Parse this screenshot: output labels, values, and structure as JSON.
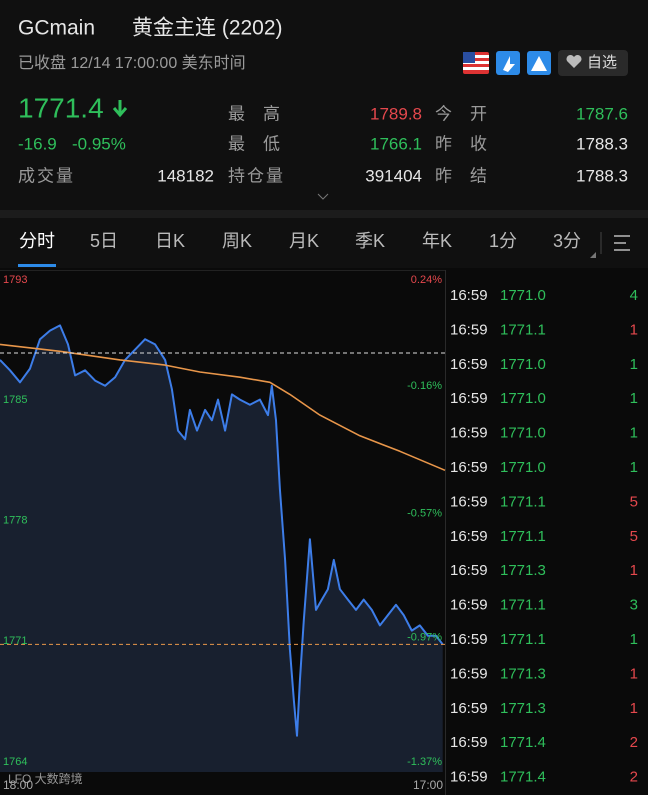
{
  "header": {
    "symbol": "GCmain",
    "name": "黄金主连 (2202)",
    "status": "已收盘 12/14 17:00:00 美东时间",
    "watchlist": "自选"
  },
  "quote": {
    "price": 1771.4,
    "change": -16.9,
    "change_pct": "-0.95%",
    "stats": [
      {
        "label": "最高",
        "value": 1789.8,
        "color": "#e5484d"
      },
      {
        "label": "今开",
        "value": 1787.6,
        "color": "#2fbf5b"
      },
      {
        "label": "最低",
        "value": 1766.1,
        "color": "#2fbf5b"
      },
      {
        "label": "昨收",
        "value": 1788.3,
        "color": "#e6e6e6"
      },
      {
        "label": "成交量",
        "value": 148182,
        "color": "#e6e6e6"
      },
      {
        "label": "持仓量",
        "value": 391404,
        "color": "#e6e6e6"
      },
      {
        "label": "昨结",
        "value": 1788.3,
        "color": "#e6e6e6"
      }
    ]
  },
  "tabs": [
    "分时",
    "5日",
    "日K",
    "周K",
    "月K",
    "季K",
    "年K",
    "1分",
    "3分"
  ],
  "chart_data": {
    "type": "line",
    "xlim": [
      0,
      1380
    ],
    "xticks": [
      {
        "value": 0,
        "label": "18:00"
      },
      {
        "value": 1380,
        "label": "17:00"
      }
    ],
    "ylim": [
      1764,
      1793
    ],
    "yticks": [
      1793,
      1785,
      1778,
      1771,
      1764
    ],
    "y2lim": [
      -1.37,
      0.24
    ],
    "y2ticks": [
      {
        "value": 0.24,
        "label": "0.24%"
      },
      {
        "value": -0.16,
        "label": "-0.16%"
      },
      {
        "value": -0.57,
        "label": "-0.57%"
      },
      {
        "value": -0.97,
        "label": "-0.97%"
      },
      {
        "value": -1.37,
        "label": "-1.37%"
      }
    ],
    "series": [
      {
        "color": "#3d7de8",
        "fill": "#18202f",
        "x": [
          0,
          31,
          62,
          93,
          124,
          155,
          186,
          211,
          233,
          264,
          295,
          326,
          357,
          388,
          419,
          450,
          481,
          512,
          533,
          552,
          574,
          589,
          611,
          636,
          657,
          676,
          698,
          719,
          744,
          775,
          806,
          831,
          843,
          856,
          868,
          884,
          899,
          911,
          921,
          930,
          942,
          961,
          980,
          998,
          1017,
          1035,
          1054,
          1079,
          1104,
          1128,
          1153,
          1178,
          1203,
          1228,
          1252,
          1277,
          1302,
          1327,
          1352,
          1373
        ],
        "values": [
          1787.9,
          1787.3,
          1786.6,
          1787.4,
          1789.1,
          1789.6,
          1789.9,
          1788.8,
          1787.0,
          1787.3,
          1786.7,
          1786.4,
          1786.9,
          1787.9,
          1788.5,
          1789.1,
          1788.8,
          1787.9,
          1786.2,
          1783.8,
          1783.3,
          1785.0,
          1783.8,
          1785.0,
          1784.4,
          1785.6,
          1783.8,
          1785.9,
          1785.6,
          1785.3,
          1785.6,
          1784.7,
          1786.4,
          1784.4,
          1780.4,
          1776.3,
          1771.1,
          1768.2,
          1766.1,
          1769.3,
          1772.8,
          1777.5,
          1773.4,
          1774.0,
          1774.6,
          1776.3,
          1774.6,
          1774.0,
          1773.4,
          1774.0,
          1773.4,
          1772.5,
          1773.1,
          1773.7,
          1773.1,
          1772.2,
          1772.5,
          1771.9,
          1771.9,
          1771.4
        ]
      },
      {
        "color": "#e8964a",
        "x": [
          0,
          186,
          372,
          512,
          620,
          744,
          837,
          899,
          992,
          1116,
          1240,
          1380
        ],
        "values": [
          1788.8,
          1788.4,
          1787.9,
          1787.6,
          1787.2,
          1786.9,
          1786.6,
          1785.9,
          1784.7,
          1783.5,
          1782.6,
          1781.5
        ]
      }
    ],
    "watermark": "LFO 大数跨境"
  },
  "trades": {
    "rows": [
      [
        "16:59",
        "1771.0",
        "4"
      ],
      [
        "16:59",
        "1771.1",
        "1"
      ],
      [
        "16:59",
        "1771.0",
        "1"
      ],
      [
        "16:59",
        "1771.0",
        "1"
      ],
      [
        "16:59",
        "1771.0",
        "1"
      ],
      [
        "16:59",
        "1771.0",
        "1"
      ],
      [
        "16:59",
        "1771.1",
        "5"
      ],
      [
        "16:59",
        "1771.1",
        "5"
      ],
      [
        "16:59",
        "1771.3",
        "1"
      ],
      [
        "16:59",
        "1771.1",
        "3"
      ],
      [
        "16:59",
        "1771.1",
        "1"
      ],
      [
        "16:59",
        "1771.3",
        "1"
      ],
      [
        "16:59",
        "1771.3",
        "1"
      ],
      [
        "16:59",
        "1771.4",
        "2"
      ],
      [
        "16:59",
        "1771.4",
        "2"
      ]
    ],
    "volume_colors": [
      "#2fbf5b",
      "#e5484d",
      "#2fbf5b",
      "#2fbf5b",
      "#2fbf5b",
      "#2fbf5b",
      "#e5484d",
      "#e5484d",
      "#e5484d",
      "#2fbf5b",
      "#2fbf5b",
      "#e5484d",
      "#e5484d",
      "#e5484d",
      "#e5484d"
    ]
  }
}
